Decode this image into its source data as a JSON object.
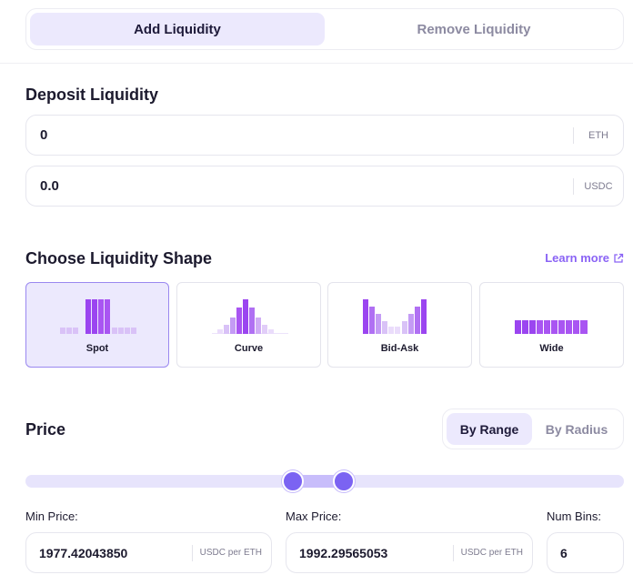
{
  "tabs": {
    "add": "Add Liquidity",
    "remove": "Remove Liquidity"
  },
  "deposit": {
    "title": "Deposit Liquidity",
    "token_a": {
      "value": "0",
      "unit": "ETH"
    },
    "token_b": {
      "value": "0.0",
      "unit": "USDC"
    }
  },
  "shape": {
    "title": "Choose Liquidity Shape",
    "learn_more": "Learn more",
    "options": [
      {
        "label": "Spot",
        "selected": true
      },
      {
        "label": "Curve",
        "selected": false
      },
      {
        "label": "Bid-Ask",
        "selected": false
      },
      {
        "label": "Wide",
        "selected": false
      }
    ]
  },
  "price": {
    "title": "Price",
    "mode_range": "By Range",
    "mode_radius": "By Radius",
    "min_label": "Min Price:",
    "max_label": "Max Price:",
    "bins_label": "Num Bins:",
    "min_value": "1977.42043850",
    "max_value": "1992.29565053",
    "unit": "USDC per ETH",
    "num_bins": "6"
  },
  "colors": {
    "accent": "#7b63f2",
    "accent_light": "#ece9fd",
    "bar_dark": "#9b45f0",
    "bar_light": "#d9c2f7"
  }
}
